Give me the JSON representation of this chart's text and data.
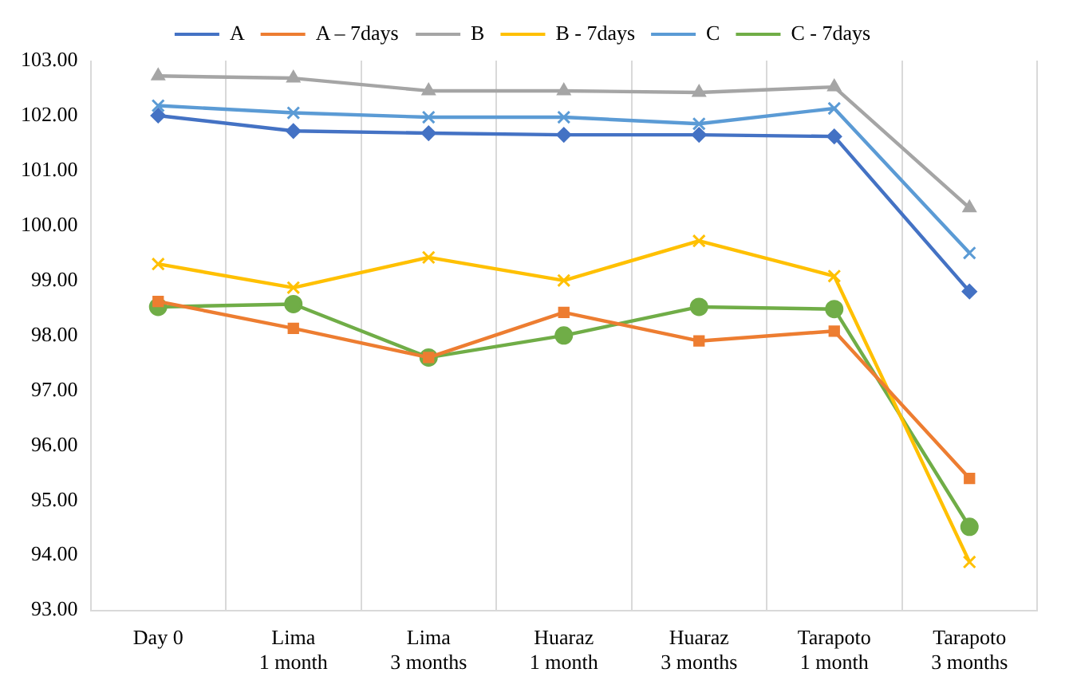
{
  "chart_data": {
    "type": "line",
    "categories": [
      "Day 0",
      "Lima\n1 month",
      "Lima\n3 months",
      "Huaraz\n1 month",
      "Huaraz\n3 months",
      "Tarapoto\n1 month",
      "Tarapoto\n3 months"
    ],
    "series": [
      {
        "name": "A",
        "color": "#4472c4",
        "marker": "diamond",
        "values": [
          102.0,
          101.72,
          101.68,
          101.65,
          101.65,
          101.62,
          98.8
        ]
      },
      {
        "name": "A – 7days",
        "color": "#ed7d31",
        "marker": "square",
        "values": [
          98.62,
          98.13,
          97.6,
          98.42,
          97.9,
          98.08,
          95.4
        ]
      },
      {
        "name": "B",
        "color": "#a5a5a5",
        "marker": "triangle",
        "values": [
          102.72,
          102.68,
          102.45,
          102.45,
          102.42,
          102.52,
          100.32
        ]
      },
      {
        "name": "B - 7days",
        "color": "#ffc000",
        "marker": "cross",
        "values": [
          99.3,
          98.87,
          99.42,
          99.0,
          99.72,
          99.08,
          93.88
        ]
      },
      {
        "name": "C",
        "color": "#5b9bd5",
        "marker": "cross",
        "values": [
          102.18,
          102.05,
          101.97,
          101.97,
          101.85,
          102.13,
          99.5
        ]
      },
      {
        "name": "C - 7days",
        "color": "#70ad47",
        "marker": "circle",
        "values": [
          98.52,
          98.57,
          97.6,
          98.0,
          98.52,
          98.48,
          94.52
        ]
      }
    ],
    "ylim": [
      93,
      103
    ],
    "yticks": [
      {
        "value": 93,
        "label": "93.00"
      },
      {
        "value": 94,
        "label": "94.00"
      },
      {
        "value": 95,
        "label": "95.00"
      },
      {
        "value": 96,
        "label": "96.00"
      },
      {
        "value": 97,
        "label": "97.00"
      },
      {
        "value": 98,
        "label": "98.00"
      },
      {
        "value": 99,
        "label": "99.00"
      },
      {
        "value": 100,
        "label": "100.00"
      },
      {
        "value": 101,
        "label": "101.00"
      },
      {
        "value": 102,
        "label": "102.00"
      },
      {
        "value": 103,
        "label": "103.00"
      }
    ],
    "grid": "x",
    "legend": "top",
    "line_style": "solid"
  }
}
